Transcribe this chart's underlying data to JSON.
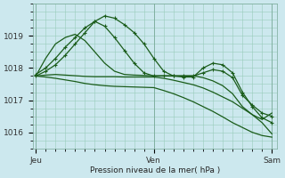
{
  "title": "",
  "xlabel": "Pression niveau de la mer( hPa )",
  "background_color": "#cce8ee",
  "grid_color": "#99ccbb",
  "line_color": "#1a5c1a",
  "ylim": [
    1015.5,
    1019.85
  ],
  "xlim": [
    -0.3,
    24.5
  ],
  "xtick_labels": [
    "Jeu",
    "Ven",
    "Sam"
  ],
  "xtick_positions": [
    0,
    12,
    24
  ],
  "ytick_values": [
    1016,
    1017,
    1018,
    1019
  ],
  "day_line_x": [
    0,
    12,
    24
  ],
  "series": [
    {
      "x": [
        0,
        1,
        2,
        3,
        4,
        5,
        6,
        7,
        8,
        9,
        10,
        11,
        12,
        13,
        14,
        15,
        16,
        17,
        18,
        19,
        20,
        21,
        22,
        23,
        24
      ],
      "y": [
        1017.75,
        1017.9,
        1018.1,
        1018.4,
        1018.75,
        1019.1,
        1019.45,
        1019.62,
        1019.55,
        1019.35,
        1019.1,
        1018.75,
        1018.3,
        1017.9,
        1017.75,
        1017.72,
        1017.72,
        1018.0,
        1018.15,
        1018.1,
        1017.85,
        1017.25,
        1016.8,
        1016.45,
        1016.3
      ],
      "marker": "+",
      "markersize": 3,
      "linestyle": "-",
      "linewidth": 0.9
    },
    {
      "x": [
        0,
        1,
        2,
        3,
        4,
        5,
        6,
        7,
        8,
        9,
        10,
        11,
        12,
        13,
        14,
        15,
        16,
        17,
        18,
        19,
        20,
        21,
        22,
        23,
        24
      ],
      "y": [
        1017.8,
        1018.0,
        1018.3,
        1018.65,
        1018.95,
        1019.25,
        1019.45,
        1019.3,
        1018.95,
        1018.55,
        1018.15,
        1017.85,
        1017.75,
        1017.75,
        1017.75,
        1017.75,
        1017.75,
        1017.85,
        1017.95,
        1017.9,
        1017.7,
        1017.15,
        1016.85,
        1016.6,
        1016.5
      ],
      "marker": "+",
      "markersize": 3,
      "linestyle": "-",
      "linewidth": 0.9
    },
    {
      "x": [
        0,
        1,
        2,
        3,
        4,
        5,
        6,
        7,
        8,
        9,
        10,
        11,
        12,
        13,
        14,
        15,
        16,
        17,
        18,
        19,
        20,
        21,
        22,
        23,
        24
      ],
      "y": [
        1017.75,
        1018.3,
        1018.75,
        1018.95,
        1019.05,
        1018.85,
        1018.5,
        1018.15,
        1017.9,
        1017.8,
        1017.78,
        1017.77,
        1017.76,
        1017.76,
        1017.76,
        1017.76,
        1017.76,
        1017.7,
        1017.6,
        1017.45,
        1017.2,
        1016.8,
        1016.55,
        1016.4,
        1016.6
      ],
      "marker": null,
      "markersize": 0,
      "linestyle": "-",
      "linewidth": 0.9
    },
    {
      "x": [
        0,
        1,
        2,
        3,
        4,
        5,
        6,
        7,
        8,
        9,
        10,
        11,
        12,
        13,
        14,
        15,
        16,
        17,
        18,
        19,
        20,
        21,
        22,
        23,
        24
      ],
      "y": [
        1017.75,
        1017.78,
        1017.8,
        1017.78,
        1017.76,
        1017.74,
        1017.73,
        1017.73,
        1017.73,
        1017.72,
        1017.72,
        1017.72,
        1017.72,
        1017.68,
        1017.62,
        1017.55,
        1017.48,
        1017.38,
        1017.25,
        1017.1,
        1016.95,
        1016.75,
        1016.55,
        1016.3,
        1015.95
      ],
      "marker": null,
      "markersize": 0,
      "linestyle": "-",
      "linewidth": 0.9
    },
    {
      "x": [
        0,
        1,
        2,
        3,
        4,
        5,
        6,
        7,
        8,
        9,
        10,
        11,
        12,
        13,
        14,
        15,
        16,
        17,
        18,
        19,
        20,
        21,
        22,
        23,
        24
      ],
      "y": [
        1017.75,
        1017.72,
        1017.68,
        1017.63,
        1017.58,
        1017.52,
        1017.48,
        1017.45,
        1017.43,
        1017.42,
        1017.41,
        1017.4,
        1017.39,
        1017.3,
        1017.2,
        1017.08,
        1016.95,
        1016.8,
        1016.65,
        1016.48,
        1016.3,
        1016.15,
        1016.0,
        1015.9,
        1015.85
      ],
      "marker": null,
      "markersize": 0,
      "linestyle": "-",
      "linewidth": 0.9
    }
  ]
}
